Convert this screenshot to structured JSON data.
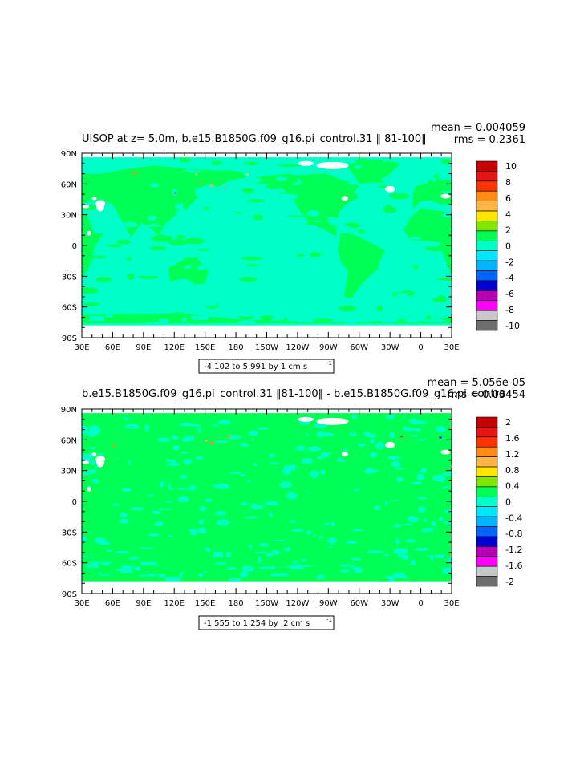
{
  "chart_data": [
    {
      "type": "heatmap",
      "title": "UISOP at z=    5.0m, b.e15.B1850G.f09_g16.pi_control.31 ‖ 81-100‖",
      "mean_text": "mean = 0.004059",
      "rms_text": "rms = 0.2361",
      "range_text": "-4.102 to 5.991 by 1 cm s",
      "range_sup": "-1",
      "x_ticks": [
        "30E",
        "60E",
        "90E",
        "120E",
        "150E",
        "180",
        "150W",
        "120W",
        "90W",
        "60W",
        "30W",
        "0",
        "30E"
      ],
      "y_ticks": [
        "90N",
        "60N",
        "30N",
        "0",
        "30S",
        "60S",
        "90S"
      ],
      "colorbar_labels": [
        "10",
        "8",
        "6",
        "4",
        "2",
        "0",
        "-2",
        "-4",
        "-6",
        "-8",
        "-10"
      ],
      "colors": [
        "#c80000",
        "#e61414",
        "#ff3200",
        "#ff8c14",
        "#ffb446",
        "#ffe600",
        "#82e600",
        "#00ff55",
        "#00ffc8",
        "#00e6ff",
        "#00b4ff",
        "#0064ff",
        "#0000d2",
        "#b400b4",
        "#ff00ff",
        "#c8c8c8",
        "#6e6e6e"
      ]
    },
    {
      "type": "heatmap",
      "title": "b.e15.B1850G.f09_g16.pi_control.31 ‖81-100‖ - b.e15.B1850G.f09_g16.pi_contro",
      "mean_text": "mean = 5.056e-05",
      "rms_text": "rms = 0.03454",
      "range_text": "-1.555 to 1.254 by .2 cm s",
      "range_sup": "-1",
      "x_ticks": [
        "30E",
        "60E",
        "90E",
        "120E",
        "150E",
        "180",
        "150W",
        "120W",
        "90W",
        "60W",
        "30W",
        "0",
        "30E"
      ],
      "y_ticks": [
        "90N",
        "60N",
        "30N",
        "0",
        "30S",
        "60S",
        "90S"
      ],
      "colorbar_labels": [
        "2",
        "1.6",
        "1.2",
        "0.8",
        "0.4",
        "0",
        "-0.4",
        "-0.8",
        "-1.2",
        "-1.6",
        "-2"
      ],
      "colors": [
        "#c80000",
        "#e61414",
        "#ff3200",
        "#ff8c14",
        "#ffb446",
        "#ffe600",
        "#82e600",
        "#00ff55",
        "#00ffc8",
        "#00e6ff",
        "#00b4ff",
        "#0064ff",
        "#0000d2",
        "#b400b4",
        "#ff00ff",
        "#c8c8c8",
        "#6e6e6e"
      ]
    }
  ]
}
